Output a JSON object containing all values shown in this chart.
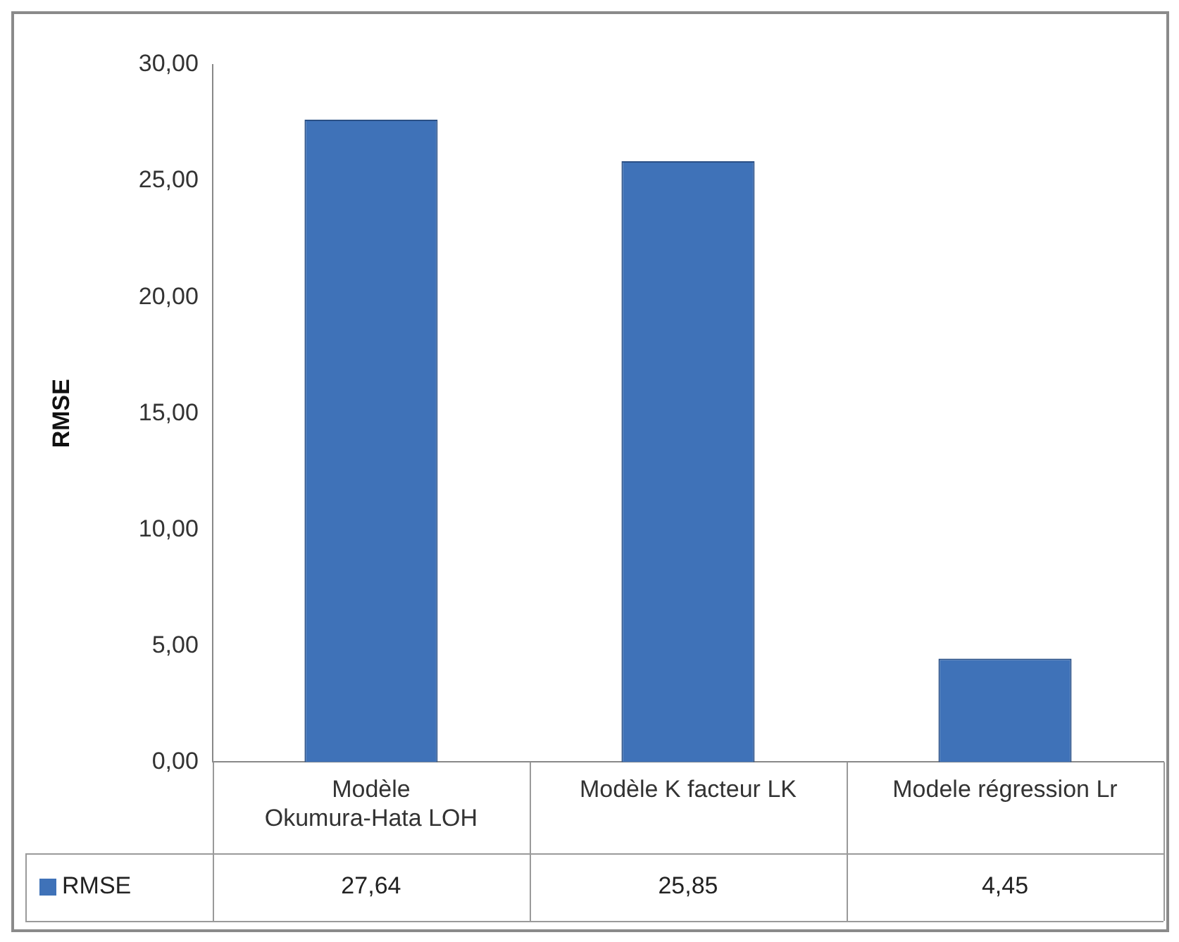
{
  "chart_data": {
    "type": "bar",
    "ylabel": "RMSE",
    "categories": [
      "Modèle Okumura-Hata LOH",
      "Modèle K facteur LK",
      "Modele régression Lr"
    ],
    "series": [
      {
        "name": "RMSE",
        "color": "#3f72b8",
        "values": [
          27.64,
          25.85,
          4.45
        ],
        "value_labels": [
          "27,64",
          "25,85",
          "4,45"
        ]
      }
    ],
    "ylim": [
      0,
      30
    ],
    "yticks": [
      {
        "value": 0,
        "label": "0,00"
      },
      {
        "value": 5,
        "label": "5,00"
      },
      {
        "value": 10,
        "label": "10,00"
      },
      {
        "value": 15,
        "label": "15,00"
      },
      {
        "value": 20,
        "label": "20,00"
      },
      {
        "value": 25,
        "label": "25,00"
      },
      {
        "value": 30,
        "label": "30,00"
      }
    ],
    "legend": "bottom",
    "grid": false
  }
}
